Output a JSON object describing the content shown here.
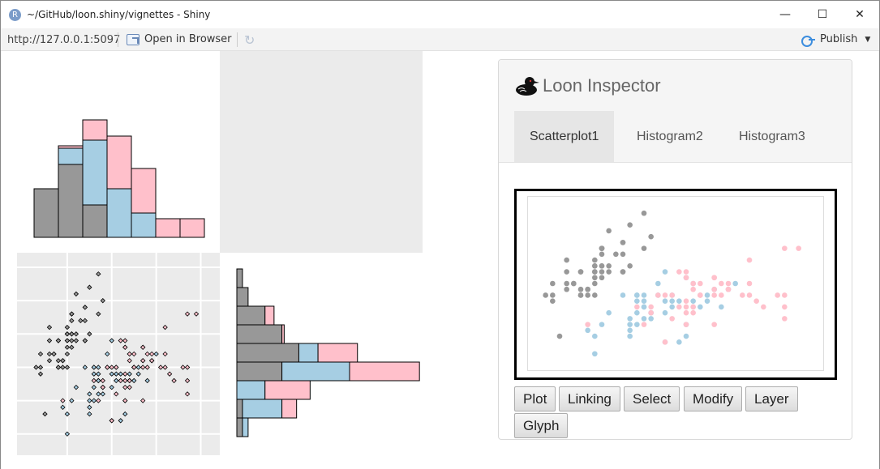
{
  "window": {
    "app_icon_letter": "R",
    "title": "~/GitHub/loon.shiny/vignettes - Shiny",
    "minimize_glyph": "—",
    "maximize_glyph": "☐",
    "close_glyph": "✕"
  },
  "toolbar": {
    "url": "http://127.0.0.1:5097",
    "open_in_browser": "Open in Browser",
    "refresh_glyph": "↻",
    "publish": "Publish",
    "publish_caret": "▼"
  },
  "inspector": {
    "title": "Loon Inspector",
    "tabs": [
      {
        "label": "Scatterplot1",
        "active": true
      },
      {
        "label": "Histogram2",
        "active": false
      },
      {
        "label": "Histogram3",
        "active": false
      }
    ],
    "buttons": [
      "Plot",
      "Linking",
      "Select",
      "Modify",
      "Layer",
      "Glyph"
    ]
  },
  "colors": {
    "gray": "#989898",
    "blue": "#a6cee3",
    "pink": "#ffc0cb",
    "panel_bg": "#ebebeb",
    "accent": "#3c8dde"
  },
  "chart_data": [
    {
      "id": "histogram-top",
      "type": "bar",
      "stacked": true,
      "bins": 7,
      "series": [
        {
          "name": "",
          "color": "#989898",
          "values": [
            6,
            9,
            4,
            0,
            0,
            0,
            0
          ]
        },
        {
          "name": "",
          "color": "#a6cee3",
          "values": [
            0,
            2,
            8,
            6,
            3,
            0,
            0
          ]
        },
        {
          "name": "",
          "color": "#ffc0cb",
          "values": [
            0,
            0.3,
            2.5,
            6.5,
            5.5,
            2.3,
            2.3
          ]
        }
      ]
    },
    {
      "id": "histogram-right",
      "type": "bar",
      "orientation": "horizontal",
      "stacked": true,
      "bins": 10,
      "series": [
        {
          "name": "",
          "color": "#989898",
          "values": [
            0.5,
            1,
            2.5,
            4,
            5.5,
            4,
            0,
            0.5,
            0.5,
            0
          ]
        },
        {
          "name": "",
          "color": "#a6cee3",
          "values": [
            0,
            0,
            0,
            0,
            1.7,
            6,
            2.5,
            3.5,
            0.5,
            0
          ]
        },
        {
          "name": "",
          "color": "#ffc0cb",
          "values": [
            0,
            0,
            0.8,
            0.2,
            3.5,
            6.2,
            4,
            1.3,
            0,
            0
          ]
        }
      ]
    },
    {
      "id": "scatterplot",
      "type": "scatter",
      "grid": true,
      "xlim": [
        4.2,
        8.1
      ],
      "ylim": [
        1.9,
        4.5
      ],
      "series": [
        {
          "name": "",
          "color": "#989898",
          "points": [
            [
              5.1,
              3.5
            ],
            [
              4.9,
              3.0
            ],
            [
              4.7,
              3.2
            ],
            [
              4.6,
              3.1
            ],
            [
              5.0,
              3.6
            ],
            [
              5.4,
              3.9
            ],
            [
              4.6,
              3.4
            ],
            [
              5.0,
              3.4
            ],
            [
              4.4,
              2.9
            ],
            [
              4.9,
              3.1
            ],
            [
              5.4,
              3.7
            ],
            [
              4.8,
              3.4
            ],
            [
              4.8,
              3.0
            ],
            [
              4.3,
              3.0
            ],
            [
              5.8,
              4.0
            ],
            [
              5.7,
              4.4
            ],
            [
              5.4,
              3.9
            ],
            [
              5.1,
              3.5
            ],
            [
              5.7,
              3.8
            ],
            [
              5.1,
              3.8
            ],
            [
              5.4,
              3.4
            ],
            [
              5.1,
              3.7
            ],
            [
              4.6,
              3.6
            ],
            [
              5.1,
              3.3
            ],
            [
              4.8,
              3.4
            ],
            [
              5.0,
              3.0
            ],
            [
              5.0,
              3.4
            ],
            [
              5.2,
              3.5
            ],
            [
              5.2,
              3.4
            ],
            [
              4.7,
              3.2
            ],
            [
              4.8,
              3.1
            ],
            [
              5.4,
              3.4
            ],
            [
              5.2,
              4.1
            ],
            [
              5.5,
              4.2
            ],
            [
              4.9,
              3.1
            ],
            [
              5.0,
              3.2
            ],
            [
              5.5,
              3.5
            ],
            [
              4.4,
              3.0
            ],
            [
              5.1,
              3.4
            ],
            [
              5.0,
              3.5
            ],
            [
              4.5,
              2.3
            ],
            [
              4.4,
              3.2
            ],
            [
              5.0,
              3.5
            ],
            [
              5.1,
              3.8
            ],
            [
              4.8,
              3.0
            ],
            [
              5.1,
              3.8
            ],
            [
              4.6,
              3.2
            ],
            [
              5.3,
              3.7
            ],
            [
              5.0,
              3.3
            ]
          ]
        },
        {
          "name": "",
          "color": "#a6cee3",
          "points": [
            [
              7.0,
              3.2
            ],
            [
              6.4,
              3.2
            ],
            [
              6.9,
              3.1
            ],
            [
              5.5,
              2.3
            ],
            [
              6.5,
              2.8
            ],
            [
              5.7,
              2.8
            ],
            [
              6.3,
              3.3
            ],
            [
              4.9,
              2.4
            ],
            [
              6.6,
              2.9
            ],
            [
              5.2,
              2.7
            ],
            [
              5.0,
              2.0
            ],
            [
              5.9,
              3.0
            ],
            [
              6.0,
              2.2
            ],
            [
              6.1,
              2.9
            ],
            [
              5.6,
              2.9
            ],
            [
              6.7,
              3.1
            ],
            [
              5.6,
              3.0
            ],
            [
              5.8,
              2.7
            ],
            [
              6.2,
              2.2
            ],
            [
              5.6,
              2.5
            ],
            [
              5.9,
              3.2
            ],
            [
              6.1,
              2.8
            ],
            [
              6.3,
              2.5
            ],
            [
              6.4,
              2.9
            ],
            [
              6.6,
              3.0
            ],
            [
              6.8,
              2.8
            ],
            [
              6.0,
              2.9
            ],
            [
              5.7,
              2.6
            ],
            [
              5.5,
              2.4
            ],
            [
              5.8,
              2.7
            ],
            [
              6.0,
              2.7
            ],
            [
              5.4,
              3.0
            ],
            [
              6.0,
              3.4
            ],
            [
              6.3,
              2.3
            ],
            [
              5.6,
              3.0
            ],
            [
              5.5,
              2.5
            ],
            [
              5.5,
              2.6
            ],
            [
              6.1,
              3.0
            ],
            [
              5.8,
              2.6
            ],
            [
              5.0,
              2.3
            ],
            [
              5.6,
              2.7
            ],
            [
              5.7,
              3.0
            ],
            [
              5.7,
              2.9
            ],
            [
              6.2,
              2.9
            ],
            [
              5.1,
              2.5
            ],
            [
              5.7,
              2.8
            ]
          ]
        },
        {
          "name": "",
          "color": "#ffc0cb",
          "points": [
            [
              6.3,
              3.3
            ],
            [
              5.8,
              2.7
            ],
            [
              7.1,
              3.0
            ],
            [
              6.3,
              2.9
            ],
            [
              6.5,
              3.0
            ],
            [
              7.6,
              3.0
            ],
            [
              4.9,
              2.5
            ],
            [
              7.3,
              2.9
            ],
            [
              6.7,
              2.5
            ],
            [
              7.2,
              3.6
            ],
            [
              6.5,
              3.2
            ],
            [
              6.4,
              2.7
            ],
            [
              6.8,
              3.0
            ],
            [
              5.7,
              2.5
            ],
            [
              5.8,
              2.8
            ],
            [
              6.4,
              3.2
            ],
            [
              6.5,
              3.0
            ],
            [
              7.7,
              3.8
            ],
            [
              7.7,
              2.6
            ],
            [
              6.0,
              2.2
            ],
            [
              6.9,
              3.2
            ],
            [
              5.6,
              2.8
            ],
            [
              7.7,
              2.8
            ],
            [
              6.3,
              2.7
            ],
            [
              6.7,
              3.3
            ],
            [
              7.2,
              3.2
            ],
            [
              6.2,
              2.8
            ],
            [
              6.1,
              3.0
            ],
            [
              6.4,
              2.8
            ],
            [
              7.2,
              3.0
            ],
            [
              7.4,
              2.8
            ],
            [
              7.9,
              3.8
            ],
            [
              6.4,
              2.8
            ],
            [
              6.3,
              2.8
            ],
            [
              6.1,
              2.6
            ],
            [
              7.7,
              3.0
            ],
            [
              6.3,
              3.4
            ],
            [
              6.4,
              3.1
            ],
            [
              6.0,
              3.0
            ],
            [
              6.9,
              3.1
            ],
            [
              6.7,
              3.1
            ],
            [
              6.9,
              3.1
            ],
            [
              6.8,
              3.2
            ],
            [
              6.7,
              3.3
            ],
            [
              6.7,
              3.0
            ],
            [
              6.3,
              2.5
            ],
            [
              6.5,
              3.0
            ],
            [
              6.2,
              3.4
            ],
            [
              5.9,
              3.0
            ]
          ]
        }
      ]
    }
  ]
}
